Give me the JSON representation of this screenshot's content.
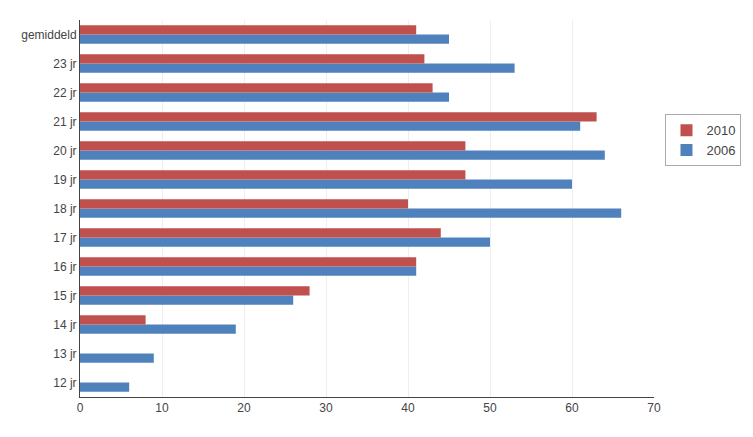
{
  "chart_data": {
    "type": "bar",
    "orientation": "horizontal",
    "categories": [
      "12 jr",
      "13 jr",
      "14 jr",
      "15 jr",
      "16 jr",
      "17 jr",
      "18 jr",
      "19 jr",
      "20 jr",
      "21 jr",
      "22 jr",
      "23 jr",
      "gemiddeld"
    ],
    "series": [
      {
        "name": "2010",
        "color": "#C0504D",
        "values": [
          0,
          0,
          8,
          28,
          41,
          44,
          40,
          47,
          47,
          63,
          43,
          42,
          41
        ]
      },
      {
        "name": "2006",
        "color": "#4F81BD",
        "values": [
          6,
          9,
          19,
          26,
          41,
          50,
          66,
          60,
          64,
          61,
          45,
          53,
          45
        ]
      }
    ],
    "xlim": [
      0,
      70
    ],
    "xticks": [
      0,
      10,
      20,
      30,
      40,
      50,
      60,
      70
    ],
    "grid": true,
    "legend": "right"
  }
}
